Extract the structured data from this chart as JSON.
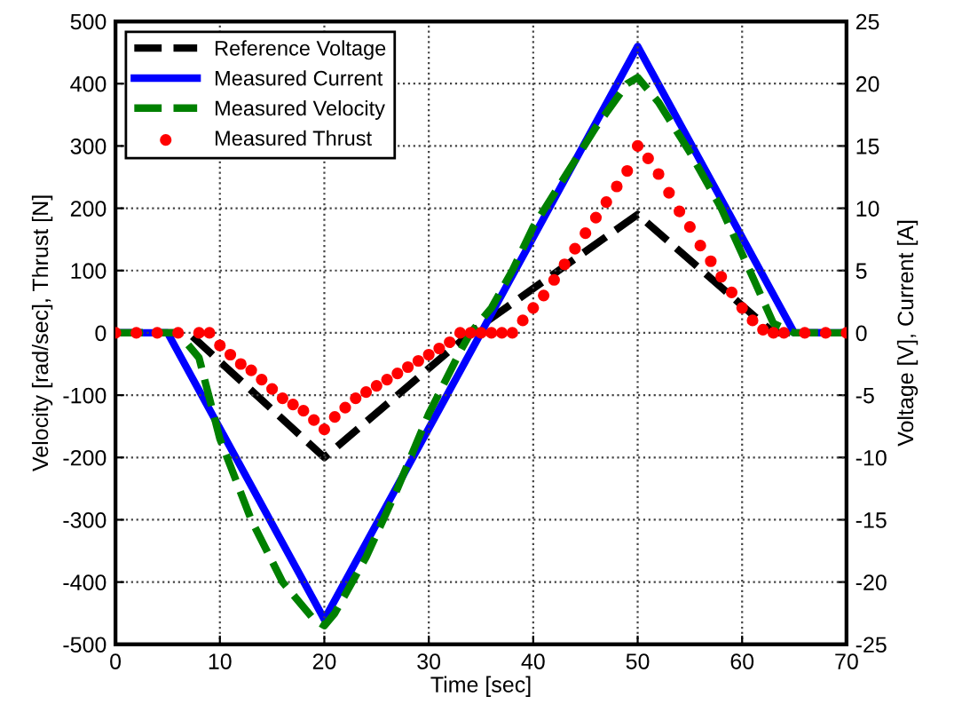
{
  "chart_data": {
    "type": "line",
    "xlabel": "Time [sec]",
    "ylabel": "Velocity [rad/sec], Thrust [N]",
    "y2label": "Voltage [V], Current [A]",
    "xlim": [
      0,
      70
    ],
    "xticks": [
      0,
      10,
      20,
      30,
      40,
      50,
      60,
      70
    ],
    "ylim": [
      -500,
      500
    ],
    "yticks": [
      -500,
      -400,
      -300,
      -200,
      -100,
      0,
      100,
      200,
      300,
      400,
      500
    ],
    "y2lim": [
      -25,
      25
    ],
    "y2ticks": [
      -25,
      -20,
      -15,
      -10,
      -5,
      0,
      5,
      10,
      15,
      20,
      25
    ],
    "grid": true,
    "legend": "top left",
    "series": [
      {
        "name": "Reference Voltage",
        "color": "#000000",
        "axis": "y2",
        "line_style": "dashed",
        "x": [
          0,
          7,
          20,
          34,
          50,
          63,
          70
        ],
        "values": [
          0,
          0,
          -10,
          0,
          9.5,
          0,
          0
        ]
      },
      {
        "name": "Measured Current",
        "color": "#0000ff",
        "axis": "y2",
        "line_style": "solid",
        "x": [
          0,
          5,
          20,
          50,
          65,
          70
        ],
        "values": [
          0,
          0,
          -23,
          23,
          0,
          0
        ]
      },
      {
        "name": "Measured Velocity",
        "color": "#008000",
        "line_style": "dashed",
        "x": [
          0,
          6,
          8,
          10,
          13,
          16,
          19,
          20,
          21,
          24,
          27,
          30,
          33,
          34,
          36,
          38,
          40,
          43,
          46,
          49,
          50,
          52,
          55,
          58,
          61,
          63,
          65,
          70
        ],
        "values": [
          0,
          0,
          -40,
          -170,
          -300,
          -400,
          -460,
          -470,
          -450,
          -360,
          -250,
          -130,
          -30,
          0,
          40,
          100,
          170,
          250,
          330,
          400,
          410,
          370,
          290,
          200,
          90,
          15,
          0,
          0
        ]
      },
      {
        "name": "Measured Thrust",
        "color": "#ff0000",
        "type": "scatter",
        "marker": "circle",
        "x": [
          0,
          2,
          4,
          6,
          8,
          9,
          10,
          11,
          12,
          13,
          14,
          15,
          16,
          17,
          18,
          19,
          20,
          21,
          22,
          23,
          24,
          25,
          26,
          27,
          28,
          29,
          30,
          31,
          32,
          33,
          34,
          35,
          36,
          37,
          38,
          39,
          40,
          41,
          42,
          43,
          44,
          45,
          46,
          47,
          48,
          49,
          50,
          51,
          52,
          53,
          54,
          55,
          56,
          57,
          58,
          59,
          60,
          61,
          62,
          63,
          64,
          66,
          68,
          70
        ],
        "values": [
          0,
          0,
          0,
          0,
          0,
          0,
          -20,
          -35,
          -50,
          -60,
          -75,
          -90,
          -105,
          -115,
          -125,
          -140,
          -155,
          -135,
          -120,
          -105,
          -95,
          -85,
          -75,
          -65,
          -55,
          -45,
          -35,
          -25,
          -15,
          0,
          0,
          0,
          0,
          0,
          0,
          20,
          40,
          60,
          85,
          110,
          135,
          160,
          185,
          210,
          235,
          260,
          300,
          280,
          255,
          225,
          195,
          170,
          140,
          115,
          90,
          65,
          40,
          20,
          5,
          0,
          0,
          0,
          0,
          0
        ]
      }
    ]
  }
}
